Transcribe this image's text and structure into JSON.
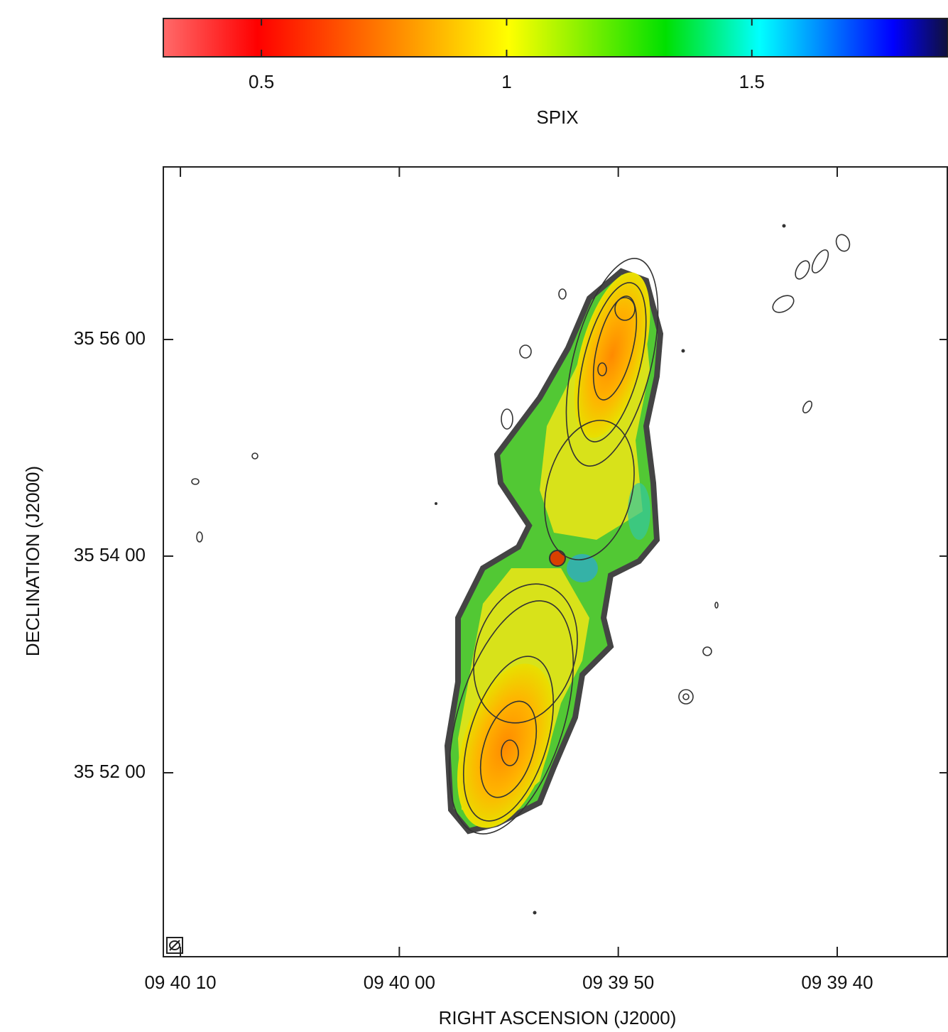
{
  "chart_data": {
    "type": "image",
    "xlabel": "RIGHT ASCENSION  (J2000)",
    "ylabel": "DECLINATION  (J2000)",
    "xlim": [
      34810.78,
      34774.94
    ],
    "xticks": [
      {
        "value": 34810,
        "label": "09 40 10"
      },
      {
        "value": 34800,
        "label": "09 40 00"
      },
      {
        "value": 34790,
        "label": "09 39 50"
      },
      {
        "value": 34780,
        "label": "09 39 40"
      }
    ],
    "ylim": [
      129018.1,
      129455.6
    ],
    "yticks": [
      {
        "value": 129360,
        "label": "35 56 00"
      },
      {
        "value": 129240,
        "label": "35 54 00"
      },
      {
        "value": 129120,
        "label": "35 52 00"
      }
    ],
    "colorbar": {
      "label": "SPIX",
      "lim": [
        0.3,
        1.9
      ],
      "ticks": [
        0.5,
        1,
        1.5
      ]
    }
  }
}
